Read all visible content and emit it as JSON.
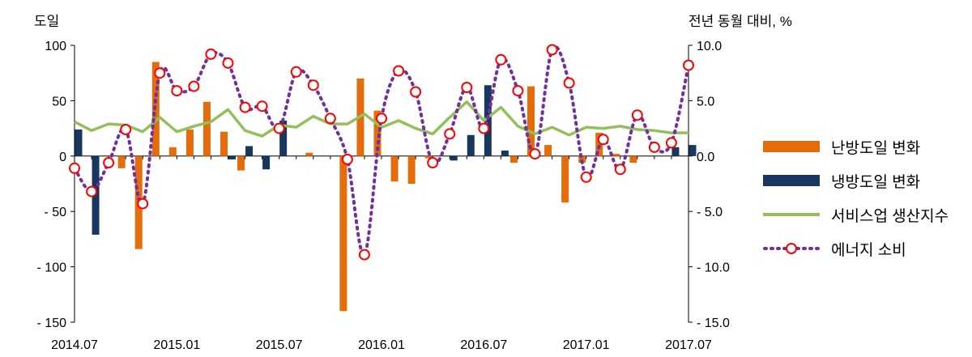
{
  "chart_data": {
    "type": "bar+line",
    "y_left_unit": "도일",
    "y_right_unit": "전년 동월 대비, %",
    "y_left_ticks": [
      "100",
      "50",
      "0",
      "- 50",
      "- 100",
      "- 150"
    ],
    "y_right_ticks": [
      "10.0",
      "5.0",
      "0.0",
      "- 5.0",
      "- 10.0",
      "- 15.0"
    ],
    "y_left_lim": [
      -150,
      100
    ],
    "y_right_lim": [
      -15,
      10
    ],
    "x_ticks": [
      {
        "index": 0,
        "label": "2014.07"
      },
      {
        "index": 6,
        "label": "2015.01"
      },
      {
        "index": 12,
        "label": "2015.07"
      },
      {
        "index": 18,
        "label": "2016.01"
      },
      {
        "index": 24,
        "label": "2016.07"
      },
      {
        "index": 30,
        "label": "2017.01"
      },
      {
        "index": 36,
        "label": "2017.07"
      }
    ],
    "months": [
      "2014.07",
      "2014.08",
      "2014.09",
      "2014.10",
      "2014.11",
      "2014.12",
      "2015.01",
      "2015.02",
      "2015.03",
      "2015.04",
      "2015.05",
      "2015.06",
      "2015.07",
      "2015.08",
      "2015.09",
      "2015.10",
      "2015.11",
      "2015.12",
      "2016.01",
      "2016.02",
      "2016.03",
      "2016.04",
      "2016.05",
      "2016.06",
      "2016.07",
      "2016.08",
      "2016.09",
      "2016.10",
      "2016.11",
      "2016.12",
      "2017.01",
      "2017.02",
      "2017.03",
      "2017.04",
      "2017.05",
      "2017.06",
      "2017.07"
    ],
    "series": [
      {
        "name": "난방도일 변화",
        "type": "bar",
        "axis": "left",
        "color": "#e46c0a",
        "values": [
          0,
          0,
          0,
          -11,
          -84,
          85,
          8,
          24,
          49,
          22,
          -13,
          0,
          0,
          0,
          3,
          0,
          -140,
          70,
          41,
          -23,
          -25,
          -2,
          0,
          0,
          0,
          0,
          -6,
          63,
          10,
          -42,
          -6,
          21,
          2,
          -6,
          0,
          0,
          0
        ]
      },
      {
        "name": "냉방도일 변화",
        "type": "bar",
        "axis": "left",
        "color": "#17375e",
        "values": [
          24,
          -71,
          0,
          0,
          0,
          0,
          0,
          0,
          0,
          -3,
          9,
          -12,
          32,
          0,
          0,
          0,
          0,
          0,
          0,
          0,
          0,
          0,
          -4,
          19,
          64,
          5,
          0,
          0,
          0,
          0,
          0,
          0,
          0,
          0,
          0,
          8,
          10
        ]
      },
      {
        "name": "서비스업 생산지수",
        "type": "line",
        "axis": "right",
        "color": "#92c05a",
        "values": [
          3.1,
          2.3,
          2.9,
          2.8,
          2.2,
          3.5,
          2.2,
          2.7,
          3.1,
          4.2,
          2.3,
          1.8,
          2.8,
          2.6,
          3.6,
          2.9,
          2.9,
          3.8,
          2.6,
          3.2,
          2.5,
          2.0,
          3.5,
          4.9,
          3.2,
          4.4,
          2.7,
          2.0,
          2.6,
          1.9,
          2.6,
          2.5,
          2.7,
          2.4,
          2.3,
          2.1,
          2.1
        ]
      },
      {
        "name": "에너지 소비",
        "type": "line",
        "axis": "right",
        "color": "#7030a0",
        "marker_color": "#ff0000",
        "values": [
          -1.1,
          -3.2,
          -0.6,
          2.4,
          -4.3,
          7.5,
          5.9,
          6.3,
          9.2,
          8.4,
          4.4,
          4.5,
          2.5,
          7.6,
          6.4,
          3.4,
          -0.3,
          -8.9,
          3.4,
          7.7,
          5.8,
          -0.6,
          2.0,
          6.2,
          2.5,
          8.7,
          5.9,
          0.2,
          9.6,
          6.6,
          -1.9,
          1.5,
          -1.2,
          3.7,
          0.8,
          1.2,
          8.2
        ]
      }
    ]
  },
  "legend": [
    {
      "label": "난방도일 변화",
      "kind": "bar",
      "color": "#e46c0a"
    },
    {
      "label": "냉방도일 변화",
      "kind": "bar",
      "color": "#17375e"
    },
    {
      "label": "서비스업 생산지수",
      "kind": "line",
      "color": "#92c05a"
    },
    {
      "label": "에너지 소비",
      "kind": "marker-line",
      "color": "#7030a0",
      "marker_color": "#ff0000"
    }
  ]
}
